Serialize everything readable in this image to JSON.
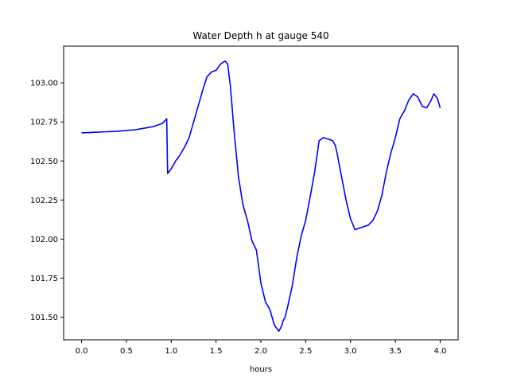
{
  "chart_data": {
    "type": "line",
    "title": "Water Depth h at gauge 540",
    "xlabel": "hours",
    "ylabel": "",
    "xlim": [
      -0.2,
      4.2
    ],
    "ylim": [
      101.355,
      103.235
    ],
    "grid": false,
    "x_ticks": [
      0.0,
      0.5,
      1.0,
      1.5,
      2.0,
      2.5,
      3.0,
      3.5,
      4.0
    ],
    "x_tick_labels": [
      "0.0",
      "0.5",
      "1.0",
      "1.5",
      "2.0",
      "2.5",
      "3.0",
      "3.5",
      "4.0"
    ],
    "y_ticks": [
      101.5,
      101.75,
      102.0,
      102.25,
      102.5,
      102.75,
      103.0
    ],
    "y_tick_labels": [
      "101.50",
      "101.75",
      "102.00",
      "102.25",
      "102.50",
      "102.75",
      "103.00"
    ],
    "series": [
      {
        "color": "#0000ff",
        "x": [
          0.0,
          0.2,
          0.4,
          0.6,
          0.7,
          0.8,
          0.9,
          0.95,
          0.96,
          1.0,
          1.05,
          1.1,
          1.15,
          1.2,
          1.25,
          1.3,
          1.35,
          1.4,
          1.45,
          1.5,
          1.55,
          1.6,
          1.63,
          1.66,
          1.7,
          1.75,
          1.8,
          1.85,
          1.9,
          1.95,
          2.0,
          2.05,
          2.1,
          2.15,
          2.2,
          2.23,
          2.25,
          2.27,
          2.3,
          2.35,
          2.4,
          2.45,
          2.5,
          2.55,
          2.6,
          2.65,
          2.7,
          2.75,
          2.8,
          2.83,
          2.85,
          2.9,
          2.95,
          3.0,
          3.05,
          3.1,
          3.15,
          3.2,
          3.25,
          3.3,
          3.35,
          3.4,
          3.45,
          3.5,
          3.55,
          3.6,
          3.65,
          3.7,
          3.75,
          3.8,
          3.85,
          3.9,
          3.93,
          3.97,
          4.0
        ],
        "y": [
          102.68,
          102.685,
          102.69,
          102.7,
          102.71,
          102.72,
          102.74,
          102.77,
          102.42,
          102.45,
          102.5,
          102.54,
          102.59,
          102.65,
          102.75,
          102.85,
          102.95,
          103.04,
          103.07,
          103.08,
          103.12,
          103.14,
          103.12,
          102.98,
          102.7,
          102.4,
          102.22,
          102.12,
          101.99,
          101.93,
          101.72,
          101.6,
          101.55,
          101.45,
          101.41,
          101.44,
          101.48,
          101.5,
          101.57,
          101.7,
          101.88,
          102.02,
          102.12,
          102.27,
          102.43,
          102.63,
          102.65,
          102.64,
          102.63,
          102.6,
          102.55,
          102.4,
          102.25,
          102.13,
          102.06,
          102.07,
          102.08,
          102.09,
          102.12,
          102.18,
          102.28,
          102.43,
          102.55,
          102.65,
          102.77,
          102.82,
          102.89,
          102.93,
          102.91,
          102.85,
          102.84,
          102.89,
          102.93,
          102.9,
          102.84
        ]
      }
    ]
  }
}
